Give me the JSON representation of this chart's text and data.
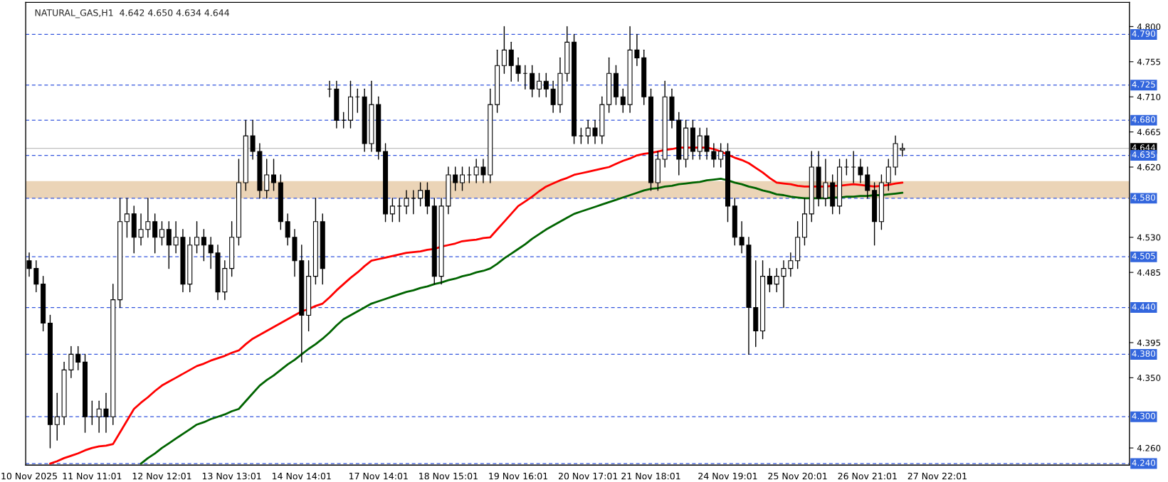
{
  "chart_data": {
    "type": "candlestick",
    "title": "NATURAL_GAS,H1  4.642 4.650 4.634 4.644",
    "categories": [
      "10 Nov 2025",
      null,
      null,
      null,
      null,
      null,
      null,
      null,
      null,
      "11 Nov 11:01",
      null,
      null,
      null,
      null,
      null,
      null,
      null,
      null,
      null,
      "12 Nov 12:01",
      null,
      null,
      null,
      null,
      null,
      null,
      null,
      null,
      null,
      "13 Nov 13:01",
      null,
      null,
      null,
      null,
      null,
      null,
      null,
      null,
      null,
      "14 Nov 14:01",
      null,
      null,
      null,
      null,
      null,
      null,
      null,
      null,
      null,
      null,
      "17 Nov 14:01",
      null,
      null,
      null,
      null,
      null,
      null,
      null,
      null,
      null,
      "18 Nov 15:01",
      null,
      null,
      null,
      null,
      null,
      null,
      null,
      null,
      null,
      "19 Nov 16:01",
      null,
      null,
      null,
      null,
      null,
      null,
      null,
      null,
      null,
      "20 Nov 17:01",
      null,
      null,
      null,
      null,
      null,
      null,
      null,
      null,
      "21 Nov 18:01",
      null,
      null,
      null,
      null,
      null,
      null,
      null,
      null,
      null,
      null,
      "24 Nov 19:01",
      null,
      null,
      null,
      null,
      null,
      null,
      null,
      null,
      null,
      "25 Nov 20:01",
      null,
      null,
      null,
      null,
      null,
      null,
      null,
      null,
      null,
      "26 Nov 21:01",
      null,
      null,
      null,
      null,
      null,
      null,
      null,
      null,
      null,
      "27 Nov 22:01",
      null,
      null,
      null,
      null,
      null,
      null,
      null,
      null,
      null,
      null,
      null,
      null,
      null,
      null,
      null,
      null,
      null,
      null,
      null,
      null,
      null,
      null,
      null,
      null,
      null,
      null,
      null
    ],
    "ohlc": [
      [
        4.5,
        4.51,
        4.48,
        4.49
      ],
      [
        4.49,
        4.5,
        4.46,
        4.47
      ],
      [
        4.47,
        4.48,
        4.41,
        4.42
      ],
      [
        4.42,
        4.43,
        4.26,
        4.29
      ],
      [
        4.29,
        4.33,
        4.27,
        4.3
      ],
      [
        4.3,
        4.37,
        4.29,
        4.36
      ],
      [
        4.36,
        4.39,
        4.35,
        4.38
      ],
      [
        4.38,
        4.39,
        4.36,
        4.37
      ],
      [
        4.37,
        4.38,
        4.28,
        4.3
      ],
      [
        4.3,
        4.32,
        4.29,
        4.3
      ],
      [
        4.3,
        4.32,
        4.28,
        4.31
      ],
      [
        4.31,
        4.33,
        4.28,
        4.3
      ],
      [
        4.3,
        4.47,
        4.29,
        4.45
      ],
      [
        4.45,
        4.58,
        4.44,
        4.55
      ],
      [
        4.55,
        4.58,
        4.53,
        4.56
      ],
      [
        4.56,
        4.57,
        4.51,
        4.53
      ],
      [
        4.53,
        4.56,
        4.52,
        4.54
      ],
      [
        4.54,
        4.58,
        4.53,
        4.55
      ],
      [
        4.55,
        4.56,
        4.51,
        4.53
      ],
      [
        4.53,
        4.55,
        4.52,
        4.54
      ],
      [
        4.54,
        4.55,
        4.49,
        4.52
      ],
      [
        4.52,
        4.55,
        4.51,
        4.53
      ],
      [
        4.53,
        4.54,
        4.46,
        4.47
      ],
      [
        4.47,
        4.53,
        4.46,
        4.52
      ],
      [
        4.52,
        4.55,
        4.51,
        4.53
      ],
      [
        4.53,
        4.54,
        4.5,
        4.52
      ],
      [
        4.52,
        4.53,
        4.49,
        4.51
      ],
      [
        4.51,
        4.52,
        4.45,
        4.46
      ],
      [
        4.46,
        4.5,
        4.45,
        4.49
      ],
      [
        4.49,
        4.55,
        4.48,
        4.53
      ],
      [
        4.53,
        4.63,
        4.52,
        4.6
      ],
      [
        4.6,
        4.68,
        4.59,
        4.66
      ],
      [
        4.66,
        4.68,
        4.63,
        4.64
      ],
      [
        4.64,
        4.65,
        4.58,
        4.59
      ],
      [
        4.59,
        4.63,
        4.58,
        4.61
      ],
      [
        4.61,
        4.63,
        4.59,
        4.6
      ],
      [
        4.6,
        4.61,
        4.54,
        4.55
      ],
      [
        4.55,
        4.56,
        4.52,
        4.53
      ],
      [
        4.53,
        4.54,
        4.48,
        4.5
      ],
      [
        4.5,
        4.52,
        4.37,
        4.43
      ],
      [
        4.43,
        4.5,
        4.41,
        4.48
      ],
      [
        4.48,
        4.58,
        4.47,
        4.55
      ],
      [
        4.55,
        4.56,
        4.47,
        4.49
      ],
      [
        4.72,
        4.73,
        4.71,
        4.72
      ],
      [
        4.72,
        4.73,
        4.67,
        4.68
      ],
      [
        4.68,
        4.69,
        4.67,
        4.68
      ],
      [
        4.68,
        4.73,
        4.67,
        4.71
      ],
      [
        4.71,
        4.72,
        4.69,
        4.71
      ],
      [
        4.71,
        4.72,
        4.64,
        4.65
      ],
      [
        4.65,
        4.73,
        4.64,
        4.7
      ],
      [
        4.7,
        4.71,
        4.63,
        4.64
      ],
      [
        4.64,
        4.65,
        4.55,
        4.56
      ],
      [
        4.56,
        4.58,
        4.55,
        4.57
      ],
      [
        4.57,
        4.58,
        4.55,
        4.57
      ],
      [
        4.57,
        4.59,
        4.56,
        4.58
      ],
      [
        4.58,
        4.59,
        4.56,
        4.58
      ],
      [
        4.58,
        4.6,
        4.57,
        4.59
      ],
      [
        4.59,
        4.6,
        4.56,
        4.57
      ],
      [
        4.57,
        4.58,
        4.47,
        4.48
      ],
      [
        4.48,
        4.58,
        4.47,
        4.57
      ],
      [
        4.57,
        4.62,
        4.56,
        4.61
      ],
      [
        4.61,
        4.62,
        4.59,
        4.6
      ],
      [
        4.6,
        4.62,
        4.59,
        4.61
      ],
      [
        4.61,
        4.62,
        4.6,
        4.61
      ],
      [
        4.61,
        4.63,
        4.6,
        4.62
      ],
      [
        4.62,
        4.63,
        4.6,
        4.61
      ],
      [
        4.61,
        4.72,
        4.6,
        4.7
      ],
      [
        4.7,
        4.77,
        4.69,
        4.75
      ],
      [
        4.75,
        4.8,
        4.74,
        4.77
      ],
      [
        4.77,
        4.78,
        4.73,
        4.75
      ],
      [
        4.75,
        4.76,
        4.73,
        4.74
      ],
      [
        4.74,
        4.75,
        4.72,
        4.74
      ],
      [
        4.74,
        4.75,
        4.71,
        4.72
      ],
      [
        4.72,
        4.74,
        4.71,
        4.73
      ],
      [
        4.73,
        4.74,
        4.71,
        4.72
      ],
      [
        4.72,
        4.73,
        4.69,
        4.7
      ],
      [
        4.7,
        4.76,
        4.69,
        4.74
      ],
      [
        4.74,
        4.8,
        4.73,
        4.78
      ],
      [
        4.78,
        4.79,
        4.65,
        4.66
      ],
      [
        4.66,
        4.67,
        4.65,
        4.66
      ],
      [
        4.66,
        4.68,
        4.65,
        4.67
      ],
      [
        4.67,
        4.68,
        4.65,
        4.66
      ],
      [
        4.66,
        4.71,
        4.65,
        4.7
      ],
      [
        4.7,
        4.76,
        4.69,
        4.74
      ],
      [
        4.74,
        4.75,
        4.7,
        4.71
      ],
      [
        4.71,
        4.72,
        4.69,
        4.7
      ],
      [
        4.7,
        4.8,
        4.69,
        4.77
      ],
      [
        4.77,
        4.79,
        4.75,
        4.76
      ],
      [
        4.76,
        4.77,
        4.7,
        4.71
      ],
      [
        4.71,
        4.72,
        4.59,
        4.6
      ],
      [
        4.6,
        4.64,
        4.59,
        4.63
      ],
      [
        4.63,
        4.73,
        4.62,
        4.71
      ],
      [
        4.71,
        4.72,
        4.67,
        4.68
      ],
      [
        4.68,
        4.69,
        4.61,
        4.63
      ],
      [
        4.63,
        4.68,
        4.62,
        4.67
      ],
      [
        4.67,
        4.68,
        4.63,
        4.64
      ],
      [
        4.64,
        4.67,
        4.63,
        4.66
      ],
      [
        4.66,
        4.67,
        4.63,
        4.64
      ],
      [
        4.64,
        4.65,
        4.62,
        4.63
      ],
      [
        4.63,
        4.65,
        4.62,
        4.64
      ],
      [
        4.64,
        4.65,
        4.55,
        4.57
      ],
      [
        4.57,
        4.58,
        4.52,
        4.53
      ],
      [
        4.53,
        4.55,
        4.51,
        4.52
      ],
      [
        4.52,
        4.53,
        4.38,
        4.44
      ],
      [
        4.44,
        4.5,
        4.39,
        4.41
      ],
      [
        4.41,
        4.5,
        4.4,
        4.48
      ],
      [
        4.48,
        4.49,
        4.46,
        4.47
      ],
      [
        4.47,
        4.49,
        4.46,
        4.48
      ],
      [
        4.48,
        4.5,
        4.44,
        4.49
      ],
      [
        4.49,
        4.51,
        4.48,
        4.5
      ],
      [
        4.5,
        4.55,
        4.49,
        4.53
      ],
      [
        4.53,
        4.58,
        4.52,
        4.56
      ],
      [
        4.56,
        4.64,
        4.55,
        4.62
      ],
      [
        4.62,
        4.64,
        4.57,
        4.58
      ],
      [
        4.58,
        4.63,
        4.57,
        4.6
      ],
      [
        4.6,
        4.61,
        4.56,
        4.57
      ],
      [
        4.57,
        4.63,
        4.56,
        4.62
      ],
      [
        4.62,
        4.63,
        4.61,
        4.62
      ],
      [
        4.62,
        4.64,
        4.6,
        4.62
      ],
      [
        4.62,
        4.63,
        4.6,
        4.61
      ],
      [
        4.61,
        4.62,
        4.58,
        4.59
      ],
      [
        4.59,
        4.6,
        4.52,
        4.55
      ],
      [
        4.55,
        4.61,
        4.54,
        4.6
      ],
      [
        4.6,
        4.63,
        4.59,
        4.62
      ],
      [
        4.62,
        4.66,
        4.61,
        4.65
      ],
      [
        4.642,
        4.65,
        4.634,
        4.644
      ],
      null,
      null,
      null,
      null,
      null,
      null,
      null,
      null,
      null,
      null,
      null,
      null,
      null,
      null,
      null,
      null,
      null,
      null,
      null,
      null,
      null,
      null,
      null,
      null,
      null,
      null,
      null,
      null,
      null,
      null,
      null,
      null
    ],
    "series": [
      {
        "type": "line",
        "color": "#ff0000",
        "values": [
          null,
          null,
          null,
          4.24,
          4.243,
          4.247,
          4.25,
          4.253,
          4.257,
          4.26,
          4.262,
          4.263,
          4.265,
          4.28,
          4.295,
          4.31,
          4.318,
          4.325,
          4.333,
          4.34,
          4.345,
          4.35,
          4.355,
          4.36,
          4.365,
          4.368,
          4.372,
          4.375,
          4.378,
          4.382,
          4.385,
          4.393,
          4.4,
          4.405,
          4.41,
          4.415,
          4.42,
          4.425,
          4.43,
          4.435,
          4.438,
          4.442,
          4.445,
          4.453,
          4.462,
          4.47,
          4.478,
          4.485,
          4.493,
          4.5,
          4.502,
          4.504,
          4.506,
          4.508,
          4.51,
          4.511,
          4.512,
          4.514,
          4.515,
          4.518,
          4.52,
          4.522,
          4.525,
          4.526,
          4.527,
          4.529,
          4.53,
          4.54,
          4.55,
          4.56,
          4.57,
          4.576,
          4.582,
          4.589,
          4.595,
          4.599,
          4.603,
          4.606,
          4.61,
          4.612,
          4.614,
          4.616,
          4.618,
          4.62,
          4.624,
          4.628,
          4.631,
          4.635,
          4.637,
          4.638,
          4.64,
          4.642,
          4.643,
          4.645,
          4.645,
          4.645,
          4.645,
          4.645,
          4.643,
          4.64,
          4.636,
          4.632,
          4.629,
          4.625,
          4.619,
          4.613,
          4.606,
          4.6,
          4.599,
          4.598,
          4.596,
          4.595,
          4.595,
          4.595,
          4.595,
          4.596,
          4.596,
          4.597,
          4.598,
          4.597,
          4.596,
          4.595,
          4.596,
          4.597,
          4.599,
          4.6,
          null,
          null,
          null,
          null,
          null,
          null,
          null,
          null,
          null,
          null,
          null,
          null,
          null,
          null,
          null,
          null,
          null,
          null,
          null,
          null,
          null,
          null,
          null,
          null,
          null,
          null,
          null,
          null,
          null,
          null,
          null,
          null
        ]
      },
      {
        "type": "line",
        "color": "#006400",
        "values": [
          null,
          null,
          null,
          null,
          null,
          null,
          null,
          null,
          null,
          null,
          null,
          null,
          null,
          null,
          null,
          null,
          4.24,
          4.247,
          4.253,
          4.26,
          4.266,
          4.272,
          4.278,
          4.284,
          4.29,
          4.293,
          4.297,
          4.3,
          4.303,
          4.307,
          4.31,
          4.32,
          4.33,
          4.34,
          4.347,
          4.353,
          4.36,
          4.367,
          4.373,
          4.38,
          4.387,
          4.393,
          4.4,
          4.408,
          4.417,
          4.425,
          4.43,
          4.435,
          4.44,
          4.445,
          4.448,
          4.451,
          4.454,
          4.457,
          4.46,
          4.462,
          4.465,
          4.467,
          4.47,
          4.472,
          4.475,
          4.477,
          4.48,
          4.482,
          4.485,
          4.487,
          4.49,
          4.496,
          4.503,
          4.509,
          4.515,
          4.521,
          4.528,
          4.534,
          4.54,
          4.545,
          4.55,
          4.555,
          4.56,
          4.563,
          4.566,
          4.569,
          4.572,
          4.575,
          4.578,
          4.581,
          4.584,
          4.587,
          4.59,
          4.592,
          4.593,
          4.595,
          4.596,
          4.598,
          4.599,
          4.6,
          4.601,
          4.603,
          4.604,
          4.605,
          4.603,
          4.6,
          4.598,
          4.595,
          4.593,
          4.59,
          4.588,
          4.585,
          4.584,
          4.582,
          4.581,
          4.58,
          4.58,
          4.58,
          4.58,
          4.581,
          4.581,
          4.582,
          4.582,
          4.583,
          4.583,
          4.584,
          4.584,
          4.585,
          4.586,
          4.587,
          null,
          null,
          null,
          null,
          null,
          null,
          null,
          null,
          null,
          null,
          null,
          null,
          null,
          null,
          null,
          null,
          null,
          null,
          null,
          null,
          null,
          null,
          null,
          null,
          null,
          null,
          null,
          null,
          null,
          null,
          null,
          null
        ]
      }
    ],
    "ylim": [
      4.238,
      4.831
    ],
    "yticks": [
      {
        "value": 4.8,
        "label": "4.800"
      },
      {
        "value": 4.755,
        "label": "4.755"
      },
      {
        "value": 4.71,
        "label": "4.710"
      },
      {
        "value": 4.665,
        "label": "4.665"
      },
      {
        "value": 4.62,
        "label": "4.620"
      },
      {
        "value": 4.53,
        "label": "4.530"
      },
      {
        "value": 4.485,
        "label": "4.485"
      },
      {
        "value": 4.395,
        "label": "4.395"
      },
      {
        "value": 4.35,
        "label": "4.350"
      },
      {
        "value": 4.26,
        "label": "4.260"
      }
    ],
    "ref_lines": [
      {
        "axis": "y",
        "value": 4.79,
        "label": "4.790",
        "color": "#3355dd",
        "line_style": "dashed"
      },
      {
        "axis": "y",
        "value": 4.725,
        "label": "4.725",
        "color": "#3355dd",
        "line_style": "dashed"
      },
      {
        "axis": "y",
        "value": 4.68,
        "label": "4.680",
        "color": "#3355dd",
        "line_style": "dashed"
      },
      {
        "axis": "y",
        "value": 4.644,
        "label": "4.644",
        "color": "#c0c0c0",
        "line_style": "solid"
      },
      {
        "axis": "y",
        "value": 4.635,
        "label": "4.635",
        "color": "#3355dd",
        "line_style": "dashed"
      },
      {
        "axis": "y",
        "value": 4.58,
        "label": "4.580",
        "color": "#3355dd",
        "line_style": "dashed"
      },
      {
        "axis": "y",
        "value": 4.505,
        "label": "4.505",
        "color": "#3355dd",
        "line_style": "dashed"
      },
      {
        "axis": "y",
        "value": 4.44,
        "label": "4.440",
        "color": "#3355dd",
        "line_style": "dashed"
      },
      {
        "axis": "y",
        "value": 4.38,
        "label": "4.380",
        "color": "#3355dd",
        "line_style": "dashed"
      },
      {
        "axis": "y",
        "value": 4.3,
        "label": "4.300",
        "color": "#3355dd",
        "line_style": "dashed"
      },
      {
        "axis": "y",
        "value": 4.24,
        "label": "4.240",
        "color": "#3355dd",
        "line_style": "dashed"
      }
    ],
    "bands": [
      {
        "axis": "y",
        "from": 4.58,
        "to": 4.602,
        "color": "#deb887"
      }
    ]
  }
}
